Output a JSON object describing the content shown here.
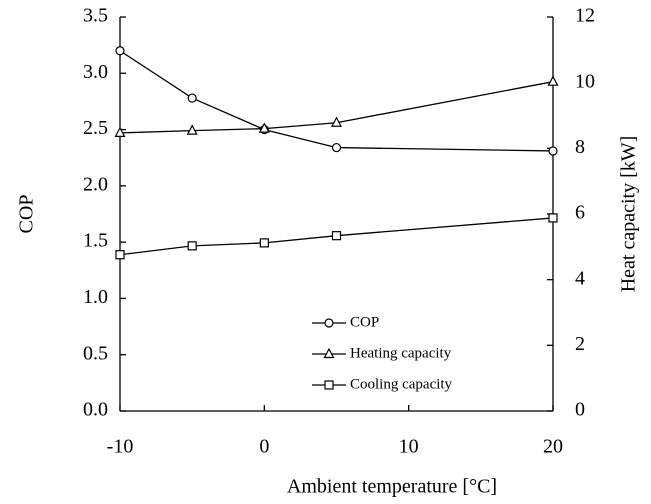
{
  "chart_data": {
    "type": "line",
    "x_label": "Ambient temperature [°C]",
    "y_label": "COP",
    "y2_label": "Heat capacity [kW]",
    "x": [
      -10,
      -5,
      0,
      5,
      20
    ],
    "series": [
      {
        "name": "COP",
        "color": "#000000",
        "marker": "circle",
        "values": [
          3.2,
          2.78,
          2.5,
          2.34,
          2.31
        ]
      },
      {
        "name": "Heating capacity",
        "color": "#000000",
        "marker": "triangle",
        "axis": "y2",
        "values": [
          8.47,
          8.54,
          8.6,
          8.78,
          10.03
        ]
      },
      {
        "name": "Cooling capacity",
        "color": "#000000",
        "marker": "square",
        "axis": "y2",
        "values": [
          4.76,
          5.03,
          5.12,
          5.34,
          5.88
        ]
      }
    ],
    "xlim": [
      -10,
      20
    ],
    "xticks": [
      -10,
      0,
      10,
      20
    ],
    "ylim": [
      0,
      3.5
    ],
    "yticks": [
      {
        "value": 0,
        "label": "0.0"
      },
      {
        "value": 0.5,
        "label": "0.5"
      },
      {
        "value": 1,
        "label": "1.0"
      },
      {
        "value": 1.5,
        "label": "1.5"
      },
      {
        "value": 2,
        "label": "2.0"
      },
      {
        "value": 2.5,
        "label": "2.5"
      },
      {
        "value": 3,
        "label": "3.0"
      },
      {
        "value": 3.5,
        "label": "3.5"
      }
    ],
    "y2lim": [
      0,
      12
    ],
    "y2ticks": [
      0,
      2,
      4,
      6,
      8,
      10,
      12
    ],
    "legend": "lower right",
    "grid": false
  }
}
